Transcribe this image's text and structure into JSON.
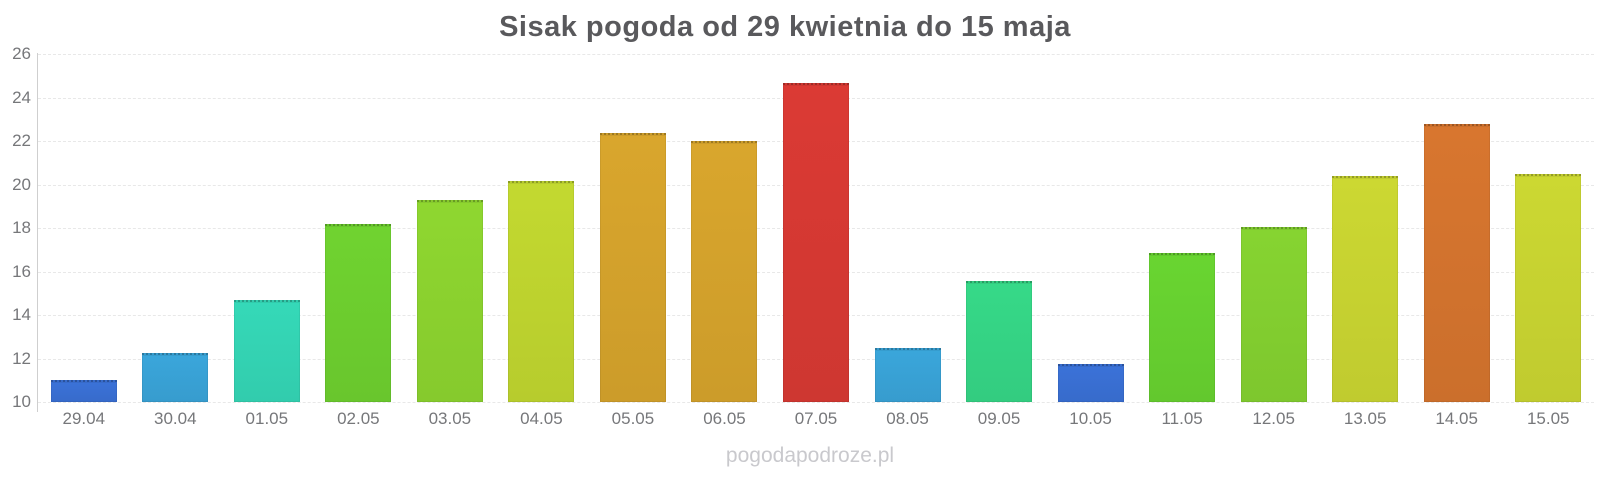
{
  "title": "Sisak pogoda od 29 kwietnia do 15 maja",
  "watermark": "pogodapodroze.pl",
  "colors": {
    "title_text": "#59595c",
    "tick_label": "#76777a",
    "gridline": "#e8e8e8",
    "axis_line": "#cfcfcf",
    "watermark_text": "#c9c9cd",
    "background": "#ffffff"
  },
  "chart_data": {
    "type": "bar",
    "title": "Sisak pogoda od 29 kwietnia do 15 maja",
    "xlabel": "",
    "ylabel": "",
    "ylim": [
      10,
      26
    ],
    "y_ticks": [
      10,
      12,
      14,
      16,
      18,
      20,
      22,
      24,
      26
    ],
    "grid": "horizontal dashed",
    "legend": "none",
    "categories": [
      "29.04",
      "30.04",
      "01.05",
      "02.05",
      "03.05",
      "04.05",
      "05.05",
      "06.05",
      "07.05",
      "08.05",
      "09.05",
      "10.05",
      "11.05",
      "12.05",
      "13.05",
      "14.05",
      "15.05"
    ],
    "values": [
      11.0,
      12.25,
      14.7,
      18.2,
      19.3,
      20.15,
      22.35,
      22.0,
      24.65,
      12.5,
      15.55,
      11.75,
      16.85,
      18.05,
      20.4,
      22.8,
      20.5
    ],
    "bar_colors": [
      "#3b72d8",
      "#3aa6db",
      "#35d9b8",
      "#70d330",
      "#8fd730",
      "#c3d930",
      "#d9a62d",
      "#d9a62d",
      "#db3a34",
      "#3aa6db",
      "#36d988",
      "#3b72d8",
      "#69d531",
      "#86d431",
      "#ccd832",
      "#d8762f",
      "#ccd832"
    ]
  }
}
